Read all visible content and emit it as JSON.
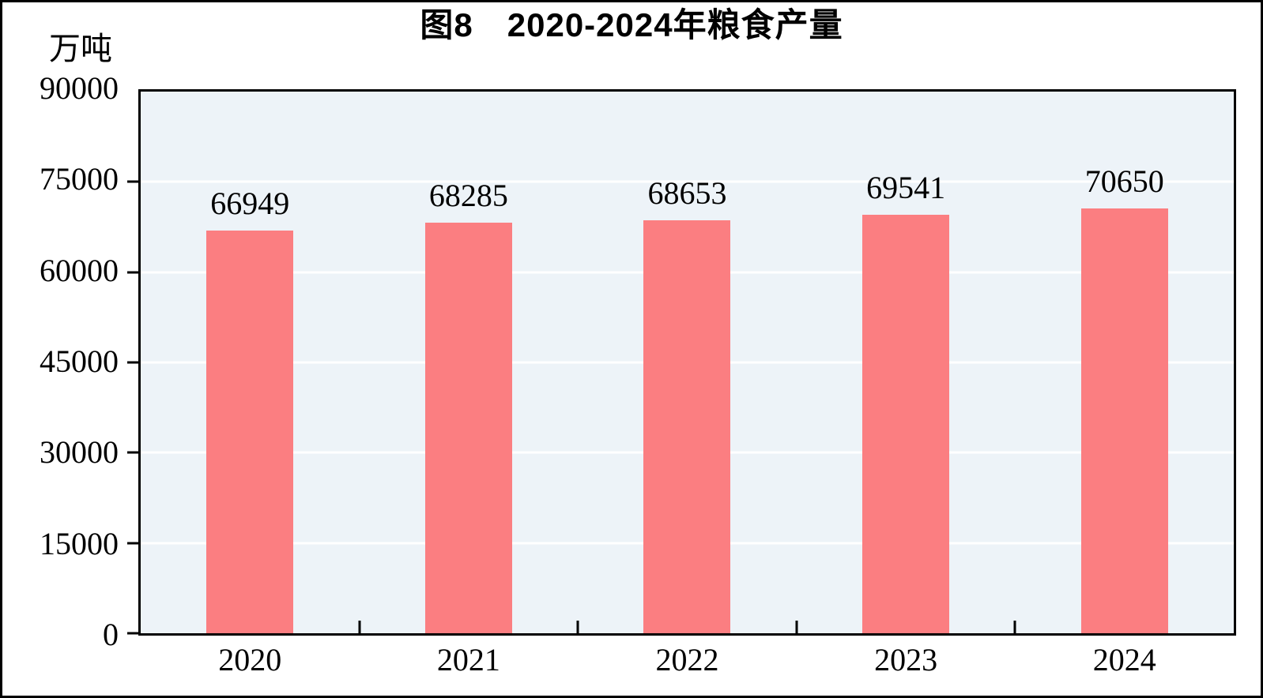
{
  "page": {
    "title": "图8　2020-2024年粮食产量",
    "unit_label": "万吨"
  },
  "chart_data": {
    "type": "bar",
    "title": "图8　2020-2024年粮食产量",
    "categories": [
      "2020",
      "2021",
      "2022",
      "2023",
      "2024"
    ],
    "values": [
      66949,
      68285,
      68653,
      69541,
      70650
    ],
    "data_labels": [
      "66949",
      "68285",
      "68653",
      "69541",
      "70650"
    ],
    "xlabel": "",
    "ylabel": "万吨",
    "ylim": [
      0,
      90000
    ],
    "yticks": [
      0,
      15000,
      30000,
      45000,
      60000,
      75000,
      90000
    ],
    "grid": true,
    "legend": "none",
    "colors": {
      "bar": "#FB7E81",
      "plot_background": "#EDF3F8",
      "gridline": "#FFFFFF",
      "axis": "#000000",
      "text": "#000000",
      "page_background": "#FFFFFF"
    }
  }
}
